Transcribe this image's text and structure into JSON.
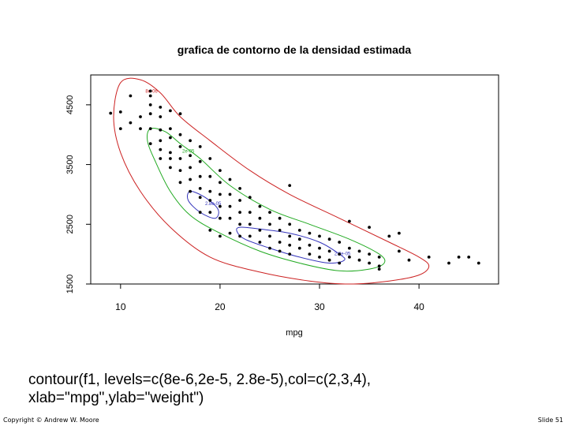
{
  "chart_data": {
    "type": "scatter",
    "title": "grafica de contorno de la densidad estimada",
    "xlabel": "mpg",
    "ylabel": "",
    "xlim": [
      7,
      48
    ],
    "ylim": [
      1500,
      5000
    ],
    "x_ticks": [
      10,
      20,
      30,
      40
    ],
    "x_tick_labels": [
      "10",
      "20",
      "30",
      "40"
    ],
    "y_ticks": [
      1500,
      2500,
      3500,
      4500
    ],
    "y_tick_labels": [
      "1500",
      "2500",
      "3500",
      "4500"
    ],
    "grid": false,
    "contours": [
      {
        "level_label": "8e-06",
        "color": "#cc2222",
        "points": [
          [
            10,
            4870
          ],
          [
            12,
            4920
          ],
          [
            14,
            4700
          ],
          [
            16,
            4300
          ],
          [
            19,
            3900
          ],
          [
            23,
            3400
          ],
          [
            27,
            3000
          ],
          [
            32,
            2600
          ],
          [
            37,
            2200
          ],
          [
            40,
            1950
          ],
          [
            41,
            1800
          ],
          [
            40,
            1650
          ],
          [
            37,
            1550
          ],
          [
            33,
            1500
          ],
          [
            29,
            1550
          ],
          [
            24,
            1700
          ],
          [
            19,
            1950
          ],
          [
            15,
            2450
          ],
          [
            12,
            3050
          ],
          [
            10,
            3700
          ],
          [
            9.3,
            4300
          ]
        ]
      },
      {
        "level_label": "2e-05",
        "color": "#22aa22",
        "points": [
          [
            13,
            4100
          ],
          [
            14.5,
            4050
          ],
          [
            16,
            3850
          ],
          [
            18,
            3600
          ],
          [
            21,
            3150
          ],
          [
            25,
            2750
          ],
          [
            29,
            2500
          ],
          [
            33,
            2250
          ],
          [
            36,
            2000
          ],
          [
            36.5,
            1850
          ],
          [
            35,
            1750
          ],
          [
            32,
            1720
          ],
          [
            28,
            1850
          ],
          [
            24,
            2050
          ],
          [
            20,
            2350
          ],
          [
            17,
            2650
          ],
          [
            15,
            3050
          ],
          [
            13.5,
            3550
          ],
          [
            12.7,
            3900
          ]
        ]
      },
      {
        "level_label": "2.8e-05",
        "color": "#3333bb",
        "points": [
          [
            17,
            3050
          ],
          [
            18.5,
            2950
          ],
          [
            19.8,
            2750
          ],
          [
            19.5,
            2600
          ],
          [
            18,
            2700
          ],
          [
            16.8,
            2900
          ]
        ]
      },
      {
        "level_label": "",
        "color": "#3333bb",
        "points": [
          [
            22,
            2450
          ],
          [
            24,
            2420
          ],
          [
            27,
            2350
          ],
          [
            30,
            2200
          ],
          [
            32,
            2000
          ],
          [
            32.5,
            1900
          ],
          [
            31,
            1850
          ],
          [
            28,
            1950
          ],
          [
            25,
            2100
          ],
          [
            22.5,
            2250
          ],
          [
            21.7,
            2380
          ]
        ]
      }
    ],
    "series": [
      {
        "color": "#000000",
        "points": [
          [
            9,
            4360
          ],
          [
            10,
            4380
          ],
          [
            10,
            4100
          ],
          [
            11,
            4650
          ],
          [
            11,
            4200
          ],
          [
            12,
            4300
          ],
          [
            12,
            4100
          ],
          [
            13,
            4730
          ],
          [
            13,
            4650
          ],
          [
            13,
            4500
          ],
          [
            13,
            4350
          ],
          [
            13,
            4100
          ],
          [
            13,
            3850
          ],
          [
            14,
            4460
          ],
          [
            14,
            4300
          ],
          [
            14,
            4080
          ],
          [
            14,
            3900
          ],
          [
            14,
            3750
          ],
          [
            14,
            3600
          ],
          [
            15,
            4400
          ],
          [
            15,
            4100
          ],
          [
            15,
            3950
          ],
          [
            15,
            3700
          ],
          [
            15,
            3600
          ],
          [
            15,
            3450
          ],
          [
            16,
            4350
          ],
          [
            16,
            4000
          ],
          [
            16,
            3800
          ],
          [
            16,
            3600
          ],
          [
            16,
            3400
          ],
          [
            16,
            3200
          ],
          [
            17,
            3900
          ],
          [
            17,
            3650
          ],
          [
            17,
            3450
          ],
          [
            17,
            3250
          ],
          [
            17,
            3050
          ],
          [
            18,
            3800
          ],
          [
            18,
            3550
          ],
          [
            18,
            3300
          ],
          [
            18,
            3100
          ],
          [
            18,
            2950
          ],
          [
            18,
            2700
          ],
          [
            19,
            3600
          ],
          [
            19,
            3300
          ],
          [
            19,
            3050
          ],
          [
            19,
            2900
          ],
          [
            19,
            2700
          ],
          [
            19,
            2400
          ],
          [
            20,
            3400
          ],
          [
            20,
            3200
          ],
          [
            20,
            3000
          ],
          [
            20,
            2800
          ],
          [
            20,
            2600
          ],
          [
            20,
            2300
          ],
          [
            21,
            3250
          ],
          [
            21,
            3000
          ],
          [
            21,
            2800
          ],
          [
            21,
            2600
          ],
          [
            21,
            2350
          ],
          [
            22,
            3100
          ],
          [
            22,
            2900
          ],
          [
            22,
            2700
          ],
          [
            22,
            2500
          ],
          [
            22,
            2300
          ],
          [
            23,
            2950
          ],
          [
            23,
            2700
          ],
          [
            23,
            2500
          ],
          [
            23,
            2300
          ],
          [
            24,
            2800
          ],
          [
            24,
            2600
          ],
          [
            24,
            2400
          ],
          [
            24,
            2200
          ],
          [
            25,
            2700
          ],
          [
            25,
            2500
          ],
          [
            25,
            2300
          ],
          [
            25,
            2100
          ],
          [
            26,
            2600
          ],
          [
            26,
            2400
          ],
          [
            26,
            2200
          ],
          [
            26,
            2050
          ],
          [
            27,
            2500
          ],
          [
            27,
            2300
          ],
          [
            27,
            2150
          ],
          [
            27,
            2000
          ],
          [
            28,
            2400
          ],
          [
            28,
            2250
          ],
          [
            28,
            2100
          ],
          [
            29,
            2350
          ],
          [
            29,
            2150
          ],
          [
            29,
            2000
          ],
          [
            30,
            2300
          ],
          [
            30,
            2100
          ],
          [
            30,
            1950
          ],
          [
            31,
            2250
          ],
          [
            31,
            2050
          ],
          [
            31,
            1900
          ],
          [
            32,
            2200
          ],
          [
            32,
            2000
          ],
          [
            32,
            1850
          ],
          [
            33,
            2100
          ],
          [
            33,
            1950
          ],
          [
            34,
            2050
          ],
          [
            34,
            1900
          ],
          [
            35,
            2000
          ],
          [
            35,
            1850
          ],
          [
            36,
            1950
          ],
          [
            36,
            1800
          ],
          [
            37,
            2300
          ],
          [
            38,
            2050
          ],
          [
            39,
            1900
          ],
          [
            41,
            1950
          ],
          [
            43,
            1850
          ],
          [
            44,
            1950
          ],
          [
            45,
            1950
          ],
          [
            46,
            1850
          ],
          [
            33,
            2550
          ],
          [
            35,
            2450
          ],
          [
            38,
            2350
          ],
          [
            27,
            3150
          ],
          [
            36,
            1750
          ]
        ]
      }
    ]
  },
  "contour_labels": [
    "8e-06",
    "2e-05",
    "2.8e-05",
    "2.8e-05"
  ],
  "code_text": "contour(f1, levels=c(8e-6,2e-5, 2.8e-5),col=c(2,3,4),\nxlab=\"mpg\",ylab=\"weight\")",
  "footer": {
    "left": "Copyright © Andrew W. Moore",
    "right": "Slide 51"
  }
}
